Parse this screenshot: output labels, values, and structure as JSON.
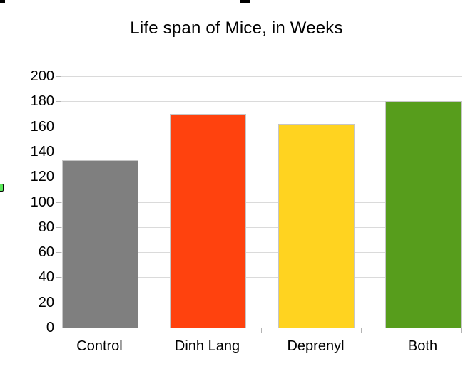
{
  "chart_data": {
    "type": "bar",
    "title": "Life span of Mice, in Weeks",
    "categories": [
      "Control",
      "Dinh Lang",
      "Deprenyl",
      "Both"
    ],
    "values": [
      133,
      170,
      162,
      180
    ],
    "bar_colors": [
      "#7F7F7F",
      "#FF420E",
      "#FFD320",
      "#579D1C"
    ],
    "xlabel": "",
    "ylabel": "",
    "ylim": [
      0,
      200
    ],
    "y_ticks": [
      0,
      20,
      40,
      60,
      80,
      100,
      120,
      140,
      160,
      180,
      200
    ],
    "grid": "horizontal",
    "legend": "none"
  },
  "colors": {
    "background": "#FFFFFF",
    "gridline": "#DADADA",
    "axis_line": "#B3B3B3",
    "text": "#000000",
    "selection_handle_fill": "#5CE95C"
  }
}
